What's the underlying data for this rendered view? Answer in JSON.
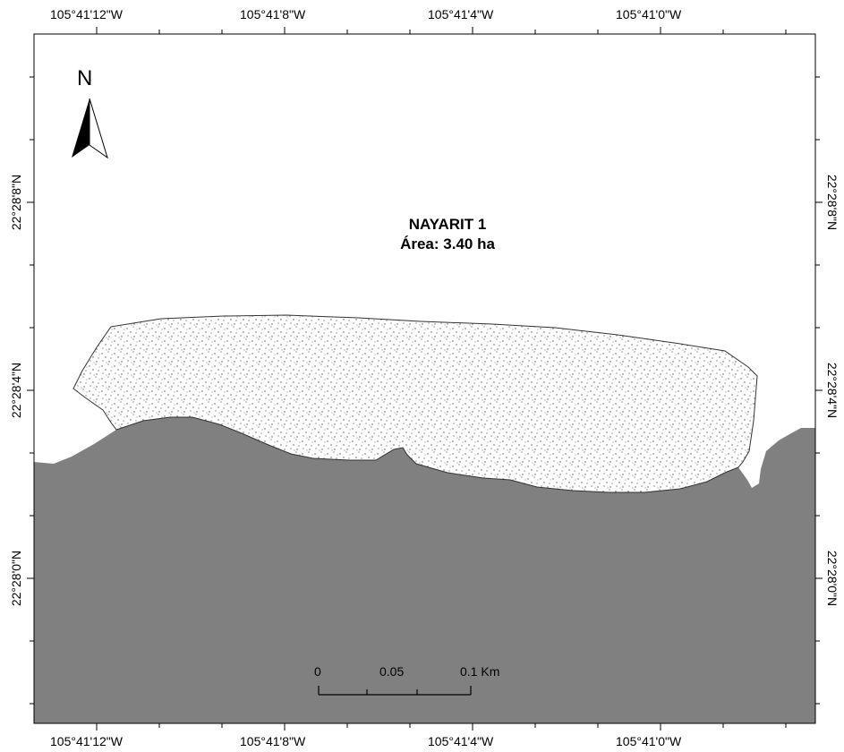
{
  "map": {
    "title": "NAYARIT 1",
    "area_label": "Área: 3.40 ha",
    "north_label": "N",
    "longitude_labels_top": [
      "105°41'12\"W",
      "105°41'8\"W",
      "105°41'4\"W",
      "105°41'0\"W"
    ],
    "longitude_labels_bottom": [
      "105°41'12\"W",
      "105°41'8\"W",
      "105°41'4\"W",
      "105°41'0\"W"
    ],
    "latitude_labels_left": [
      "22°28'8\"N",
      "22°28'4\"N",
      "22°28'0\"N"
    ],
    "latitude_labels_right": [
      "22°28'8\"N",
      "22°28'4\"N",
      "22°28'0\"N"
    ],
    "scale_bar": {
      "labels": [
        "0",
        "0.05",
        "0.1 Km"
      ]
    },
    "colors": {
      "land": "#808080",
      "polygon_fill": "#ffffff",
      "stipple": "#555555",
      "frame": "#000000"
    }
  }
}
